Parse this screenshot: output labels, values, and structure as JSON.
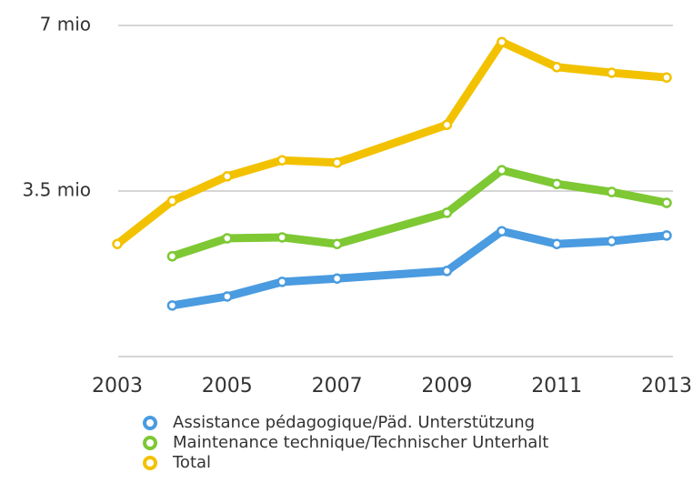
{
  "chart_data": {
    "type": "line",
    "x": [
      2003,
      2004,
      2005,
      2006,
      2007,
      2009,
      2010,
      2011,
      2012,
      2013
    ],
    "series": [
      {
        "name": "Assistance pédagogique/Päd. Unterstützung",
        "color": "#4a9be0",
        "values": [
          null,
          1.08,
          1.27,
          1.58,
          1.65,
          1.81,
          2.65,
          2.38,
          2.44,
          2.56
        ]
      },
      {
        "name": "Maintenance technique/Technischer Unterhalt",
        "color": "#7ec834",
        "values": [
          null,
          2.12,
          2.5,
          2.52,
          2.38,
          3.04,
          3.94,
          3.65,
          3.48,
          3.25
        ]
      },
      {
        "name": "Total",
        "color": "#f2c200",
        "values": [
          2.38,
          3.29,
          3.81,
          4.15,
          4.1,
          4.9,
          6.65,
          6.12,
          6.0,
          5.9
        ]
      }
    ],
    "xlim": [
      2003,
      2013
    ],
    "xticks": [
      2003,
      2005,
      2007,
      2009,
      2011,
      2013
    ],
    "ylim": [
      0,
      7
    ],
    "yticks": [
      0,
      {
        "value": 3.5,
        "label": "3.5 mio"
      },
      {
        "value": 7,
        "label": "7 mio"
      }
    ],
    "grid": true,
    "legend": "bottom"
  }
}
